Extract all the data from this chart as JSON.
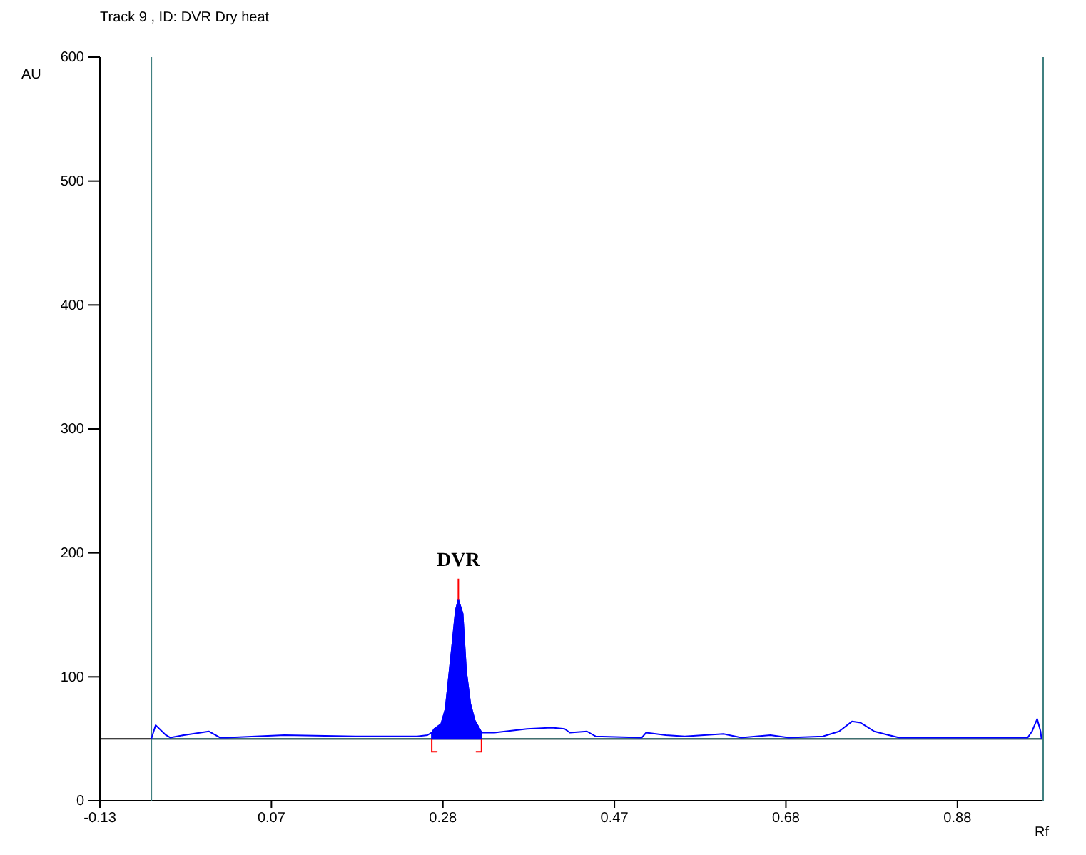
{
  "chart_data": {
    "type": "line",
    "title": "Track  9 , ID: DVR Dry heat",
    "xlabel": "Rf",
    "ylabel": "AU",
    "xlim": [
      -0.125,
      0.975
    ],
    "ylim": [
      0,
      600
    ],
    "xticks": [
      {
        "value": -0.125,
        "label": "-0.13"
      },
      {
        "value": 0.075,
        "label": "0.07"
      },
      {
        "value": 0.275,
        "label": "0.28"
      },
      {
        "value": 0.475,
        "label": "0.47"
      },
      {
        "value": 0.675,
        "label": "0.68"
      },
      {
        "value": 0.875,
        "label": "0.88"
      }
    ],
    "yticks": [
      0,
      100,
      200,
      300,
      400,
      500,
      600
    ],
    "grid": false,
    "marker": "none",
    "line_style": "solid",
    "ref_lines": [
      {
        "axis": "y",
        "value": 50,
        "color": "#000000"
      },
      {
        "axis": "y",
        "value": 50,
        "color": "#408080"
      },
      {
        "axis": "x",
        "value": -0.065,
        "color": "#408080"
      },
      {
        "axis": "x",
        "value": 0.975,
        "color": "#408080"
      }
    ],
    "annotations": [
      {
        "text": "DVR",
        "x": 0.293,
        "y": 162
      }
    ],
    "series": [
      {
        "color": "#0000ff",
        "x": [
          -0.065,
          -0.06,
          -0.048,
          -0.043,
          -0.027,
          0.002,
          0.015,
          0.023,
          0.09,
          0.173,
          0.245,
          0.257,
          0.262,
          0.265,
          0.273,
          0.278,
          0.285,
          0.29,
          0.293,
          0.298,
          0.302,
          0.307,
          0.312,
          0.32,
          0.335,
          0.373,
          0.402,
          0.417,
          0.423,
          0.443,
          0.453,
          0.507,
          0.512,
          0.535,
          0.557,
          0.602,
          0.623,
          0.657,
          0.678,
          0.718,
          0.737,
          0.752,
          0.762,
          0.778,
          0.795,
          0.807,
          0.89,
          0.957,
          0.962,
          0.968,
          0.972,
          0.973
        ],
        "values": [
          50,
          61,
          53,
          51,
          53,
          56,
          51,
          51,
          53,
          52,
          52,
          53,
          55,
          58,
          62,
          74,
          120,
          154,
          162,
          151,
          105,
          78,
          65,
          55,
          55,
          58,
          59,
          58,
          55,
          56,
          52,
          51,
          55,
          53,
          52,
          54,
          51,
          53,
          51,
          52,
          56,
          64,
          63,
          56,
          53,
          51,
          51,
          51,
          56,
          66,
          56,
          50
        ]
      },
      {
        "type": "area",
        "color": "#0000ff",
        "x": [
          0.262,
          0.265,
          0.273,
          0.278,
          0.285,
          0.29,
          0.293,
          0.298,
          0.302,
          0.307,
          0.312,
          0.32
        ],
        "values": [
          55,
          58,
          62,
          74,
          120,
          154,
          162,
          151,
          105,
          78,
          65,
          55
        ]
      }
    ]
  }
}
